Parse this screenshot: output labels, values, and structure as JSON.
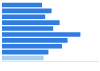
{
  "chart_data": {
    "type": "bar",
    "orientation": "horizontal",
    "categories": [
      null,
      null,
      null,
      null,
      null,
      null,
      null,
      null,
      null,
      null
    ],
    "values": [
      5.0,
      6.2,
      5.4,
      7.2,
      6.4,
      9.8,
      8.2,
      7.5,
      5.8,
      5.2
    ],
    "colors": [
      "#2f7de1",
      "#2f7de1",
      "#2f7de1",
      "#2f7de1",
      "#2f7de1",
      "#2f7de1",
      "#2f7de1",
      "#2f7de1",
      "#2f7de1",
      "#a8cff0"
    ],
    "xlim": [
      0,
      12
    ],
    "grid": false,
    "tick_labels": false
  }
}
